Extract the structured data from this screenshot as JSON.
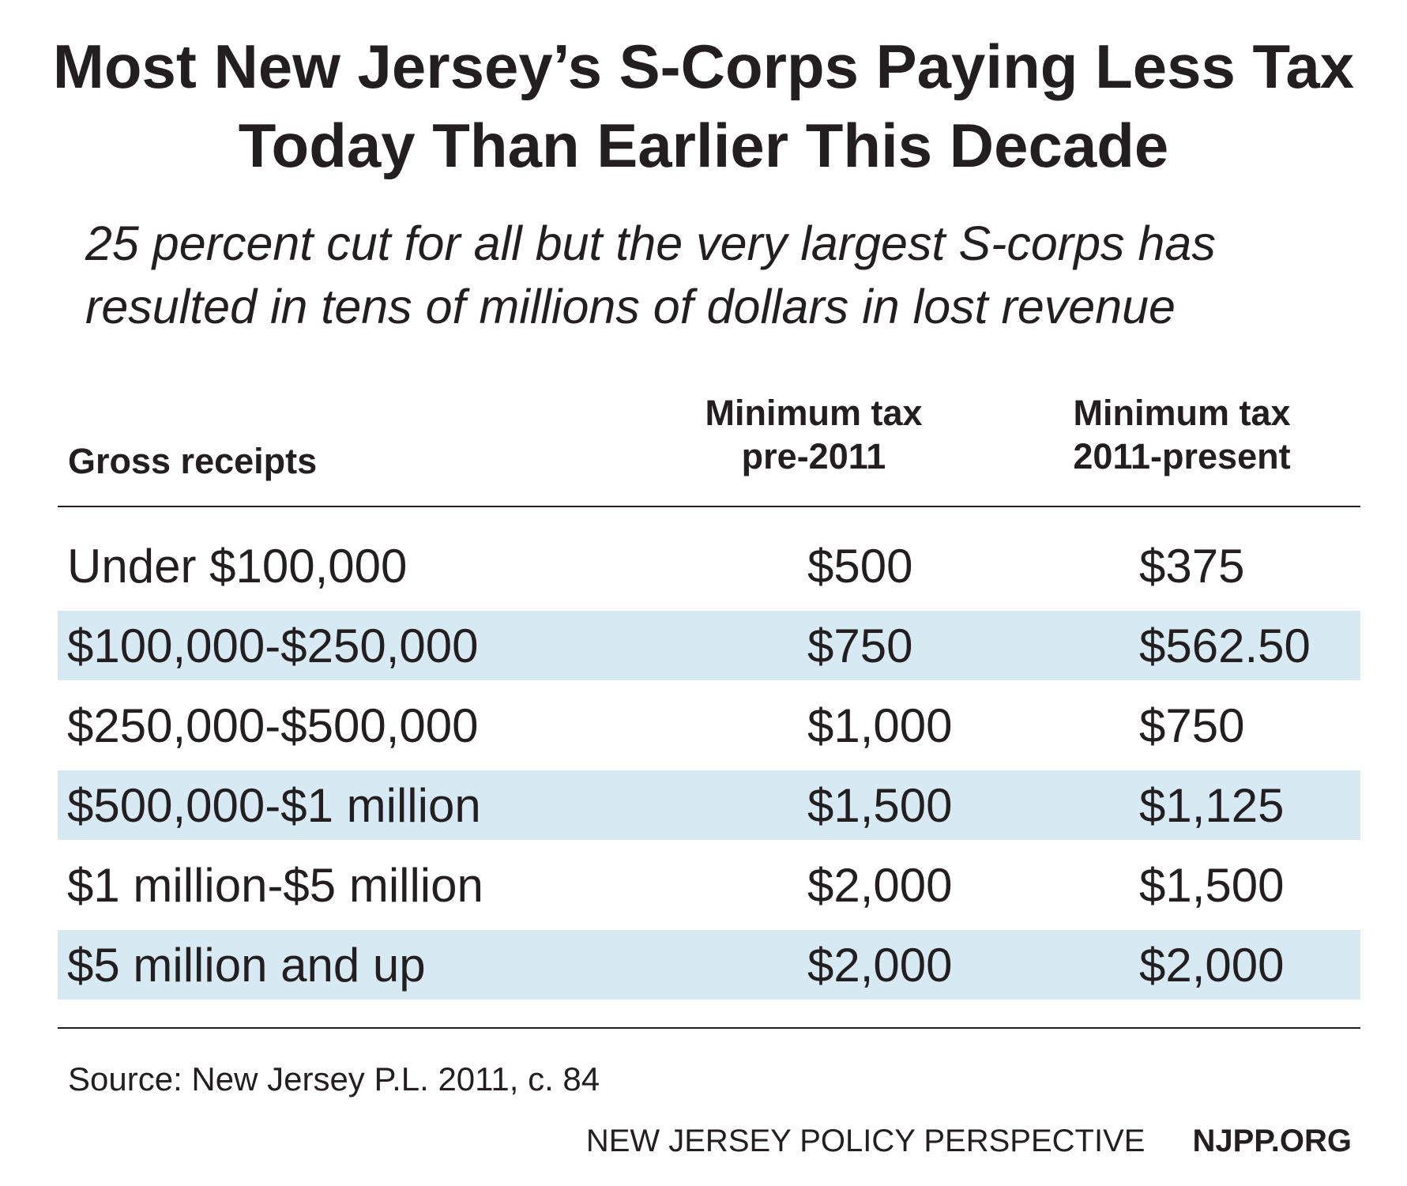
{
  "chart_data": {
    "type": "table",
    "title": "Most New Jersey’s S-Corps Paying Less Tax Today Than Earlier This Decade",
    "subtitle": "25 percent cut for all but the very largest S-corps has resulted in tens of millions of dollars in lost revenue",
    "columns": [
      "Gross receipts",
      "Minimum tax pre-2011",
      "Minimum tax 2011-present"
    ],
    "column_lines": [
      [
        "Gross receipts"
      ],
      [
        "Minimum tax",
        "pre-2011"
      ],
      [
        "Minimum tax",
        "2011-present"
      ]
    ],
    "rows": [
      [
        "Under $100,000",
        "$500",
        "$375"
      ],
      [
        "$100,000-$250,000",
        "$750",
        "$562.50"
      ],
      [
        "$250,000-$500,000",
        "$1,000",
        "$750"
      ],
      [
        "$500,000-$1 million",
        "$1,500",
        "$1,125"
      ],
      [
        "$1 million-$5 million",
        "$2,000",
        "$1,500"
      ],
      [
        "$5 million and up",
        "$2,000",
        "$2,000"
      ]
    ],
    "row_shading": "alternating",
    "shade_color": "#d7e9f3",
    "source": "Source: New Jersey P.L. 2011, c. 84"
  },
  "footer": {
    "org": "NEW JERSEY POLICY PERSPECTIVE",
    "url": "NJPP.ORG"
  }
}
